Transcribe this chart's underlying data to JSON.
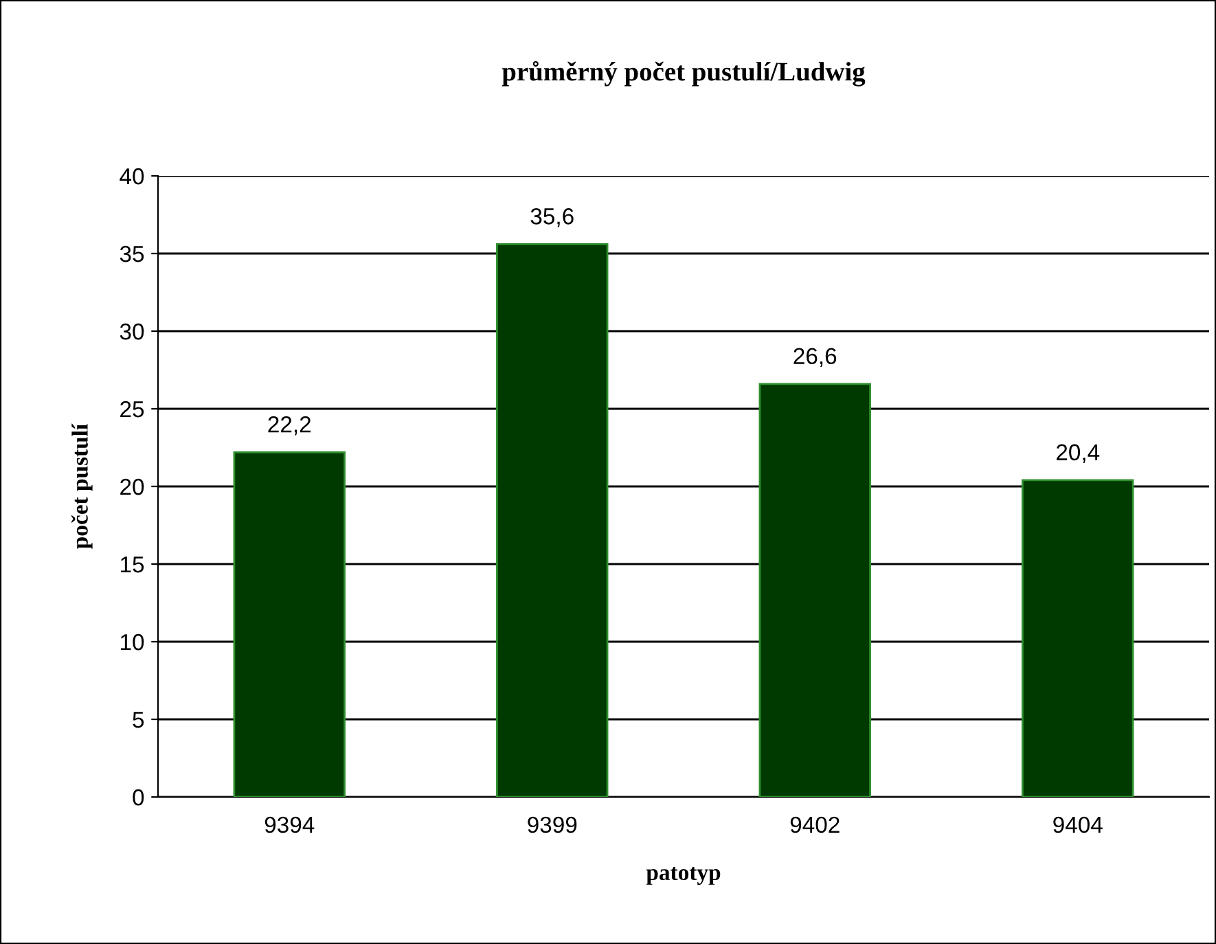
{
  "chart_data": {
    "type": "bar",
    "title": "průměrný počet pustulí/Ludwig",
    "xlabel": "patotyp",
    "ylabel": "počet pustulí",
    "categories": [
      "9394",
      "9399",
      "9402",
      "9404"
    ],
    "values": [
      22.2,
      35.6,
      26.6,
      20.4
    ],
    "value_labels": [
      "22,2",
      "35,6",
      "26,6",
      "20,4"
    ],
    "color": "#003a00",
    "ylim": [
      0,
      40
    ],
    "yticks": [
      0,
      5,
      10,
      15,
      20,
      25,
      30,
      35,
      40
    ],
    "grid": "y"
  }
}
